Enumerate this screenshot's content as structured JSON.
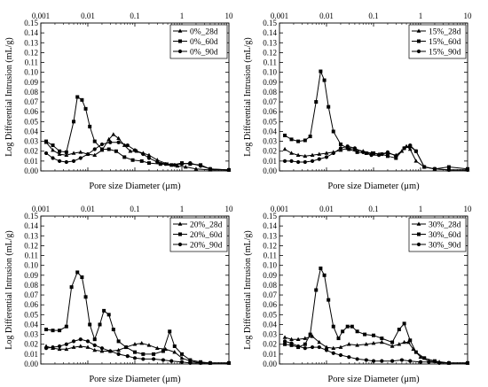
{
  "chart_data": [
    {
      "type": "line",
      "xlabel": "Pore size Diameter (μm)",
      "ylabel": "Log Differential Intrusion (mL/g)",
      "xscale": "log",
      "xlim": [
        0.001,
        10
      ],
      "ylim": [
        0,
        0.15
      ],
      "x_ticks": [
        "0.001",
        "0.01",
        "0.1",
        "1",
        "10"
      ],
      "y_ticks": [
        "0.00",
        "0.01",
        "0.02",
        "0.03",
        "0.04",
        "0.05",
        "0.06",
        "0.07",
        "0.08",
        "0.09",
        "0.10",
        "0.11",
        "0.12",
        "0.13",
        "0.14",
        "0.15"
      ],
      "legend_position": "top-right",
      "series": [
        {
          "name": "0%_28d",
          "marker": "triangle",
          "x": [
            0.0013,
            0.0018,
            0.0025,
            0.0035,
            0.005,
            0.007,
            0.01,
            0.014,
            0.02,
            0.028,
            0.035,
            0.045,
            0.06,
            0.08,
            0.11,
            0.15,
            0.2,
            0.3,
            0.5,
            0.8,
            1.2,
            2,
            4,
            10
          ],
          "y": [
            0.029,
            0.021,
            0.017,
            0.016,
            0.018,
            0.019,
            0.017,
            0.016,
            0.021,
            0.032,
            0.037,
            0.033,
            0.026,
            0.02,
            0.02,
            0.018,
            0.016,
            0.011,
            0.007,
            0.005,
            0.004,
            0.002,
            0.001,
            0.001
          ]
        },
        {
          "name": "0%_60d",
          "marker": "square",
          "x": [
            0.0013,
            0.0018,
            0.0025,
            0.0035,
            0.005,
            0.006,
            0.0075,
            0.009,
            0.011,
            0.014,
            0.02,
            0.028,
            0.04,
            0.06,
            0.09,
            0.14,
            0.2,
            0.35,
            0.6,
            1,
            1.5,
            2.5,
            4,
            10
          ],
          "y": [
            0.03,
            0.026,
            0.02,
            0.019,
            0.05,
            0.075,
            0.072,
            0.063,
            0.045,
            0.03,
            0.022,
            0.022,
            0.02,
            0.014,
            0.011,
            0.01,
            0.008,
            0.007,
            0.006,
            0.008,
            0.007,
            0.006,
            0.002,
            0.001
          ]
        },
        {
          "name": "0%_90d",
          "marker": "circle",
          "x": [
            0.0013,
            0.0018,
            0.0025,
            0.0035,
            0.005,
            0.007,
            0.01,
            0.014,
            0.02,
            0.03,
            0.045,
            0.07,
            0.1,
            0.15,
            0.2,
            0.3,
            0.45,
            0.7,
            1,
            1.5,
            2.5,
            4,
            10
          ],
          "y": [
            0.018,
            0.013,
            0.01,
            0.009,
            0.01,
            0.013,
            0.017,
            0.022,
            0.027,
            0.029,
            0.029,
            0.026,
            0.021,
            0.017,
            0.013,
            0.009,
            0.007,
            0.006,
            0.007,
            0.008,
            0.005,
            0.002,
            0.001
          ]
        }
      ]
    },
    {
      "type": "line",
      "xlabel": "Pore size Diameter (μm)",
      "ylabel": "Log Differential Intrusion (mL/g)",
      "xscale": "log",
      "xlim": [
        0.001,
        10
      ],
      "ylim": [
        0,
        0.15
      ],
      "x_ticks": [
        "0.001",
        "0.01",
        "0.1",
        "1",
        "10"
      ],
      "y_ticks": [
        "0.00",
        "0.01",
        "0.02",
        "0.03",
        "0.04",
        "0.05",
        "0.06",
        "0.07",
        "0.08",
        "0.09",
        "0.10",
        "0.11",
        "0.12",
        "0.13",
        "0.14",
        "0.15"
      ],
      "legend_position": "top-right",
      "series": [
        {
          "name": "15%_28d",
          "marker": "triangle",
          "x": [
            0.0013,
            0.0018,
            0.0025,
            0.0035,
            0.005,
            0.007,
            0.01,
            0.014,
            0.02,
            0.028,
            0.04,
            0.06,
            0.09,
            0.13,
            0.2,
            0.3,
            0.4,
            0.5,
            0.6,
            0.8,
            1.2,
            2,
            4,
            10
          ],
          "y": [
            0.022,
            0.018,
            0.016,
            0.015,
            0.016,
            0.017,
            0.018,
            0.019,
            0.021,
            0.023,
            0.022,
            0.02,
            0.018,
            0.017,
            0.018,
            0.016,
            0.02,
            0.025,
            0.022,
            0.01,
            0.004,
            0.002,
            0.001,
            0.001
          ]
        },
        {
          "name": "15%_60d",
          "marker": "square",
          "x": [
            0.0013,
            0.0018,
            0.0025,
            0.0035,
            0.0045,
            0.006,
            0.0075,
            0.009,
            0.011,
            0.014,
            0.02,
            0.03,
            0.045,
            0.07,
            0.1,
            0.15,
            0.2,
            0.3,
            0.45,
            0.6,
            0.8,
            1.2,
            2,
            4,
            10
          ],
          "y": [
            0.036,
            0.032,
            0.03,
            0.031,
            0.035,
            0.07,
            0.101,
            0.092,
            0.065,
            0.04,
            0.027,
            0.022,
            0.019,
            0.018,
            0.018,
            0.017,
            0.015,
            0.013,
            0.023,
            0.025,
            0.02,
            0.004,
            0.002,
            0.004,
            0.002
          ]
        },
        {
          "name": "15%_90d",
          "marker": "circle",
          "x": [
            0.0013,
            0.0018,
            0.0025,
            0.0035,
            0.005,
            0.007,
            0.01,
            0.014,
            0.02,
            0.028,
            0.04,
            0.06,
            0.09,
            0.13,
            0.2,
            0.3,
            0.45,
            0.6,
            0.8,
            1.2,
            2,
            4,
            10
          ],
          "y": [
            0.01,
            0.01,
            0.009,
            0.009,
            0.01,
            0.012,
            0.014,
            0.018,
            0.023,
            0.025,
            0.023,
            0.019,
            0.016,
            0.016,
            0.019,
            0.015,
            0.023,
            0.026,
            0.02,
            0.004,
            0.002,
            0.001,
            0.001
          ]
        }
      ]
    },
    {
      "type": "line",
      "xlabel": "Pore size Diameter (μm)",
      "ylabel": "Log Differential Intrusion (mL/g)",
      "xscale": "log",
      "xlim": [
        0.001,
        10
      ],
      "ylim": [
        0,
        0.15
      ],
      "x_ticks": [
        "0.001",
        "0.01",
        "0.1",
        "1",
        "10"
      ],
      "y_ticks": [
        "0.00",
        "0.01",
        "0.02",
        "0.03",
        "0.04",
        "0.05",
        "0.06",
        "0.07",
        "0.08",
        "0.09",
        "0.10",
        "0.11",
        "0.12",
        "0.13",
        "0.14",
        "0.15"
      ],
      "legend_position": "top-right",
      "series": [
        {
          "name": "20%_28d",
          "marker": "triangle",
          "x": [
            0.0013,
            0.0018,
            0.0025,
            0.0035,
            0.005,
            0.007,
            0.01,
            0.014,
            0.02,
            0.03,
            0.045,
            0.065,
            0.1,
            0.14,
            0.2,
            0.3,
            0.45,
            0.7,
            1,
            1.5,
            2.5,
            4,
            10
          ],
          "y": [
            0.018,
            0.016,
            0.015,
            0.015,
            0.017,
            0.018,
            0.017,
            0.014,
            0.013,
            0.013,
            0.014,
            0.017,
            0.02,
            0.021,
            0.019,
            0.016,
            0.015,
            0.012,
            0.006,
            0.003,
            0.001,
            0.001,
            0.001
          ]
        },
        {
          "name": "20%_60d",
          "marker": "square",
          "x": [
            0.0013,
            0.0018,
            0.0025,
            0.0035,
            0.0045,
            0.006,
            0.0075,
            0.009,
            0.011,
            0.014,
            0.018,
            0.022,
            0.028,
            0.035,
            0.045,
            0.065,
            0.1,
            0.15,
            0.25,
            0.4,
            0.55,
            0.7,
            1,
            1.5,
            2.5,
            4,
            10
          ],
          "y": [
            0.035,
            0.034,
            0.034,
            0.038,
            0.078,
            0.093,
            0.088,
            0.068,
            0.04,
            0.025,
            0.04,
            0.054,
            0.05,
            0.035,
            0.023,
            0.017,
            0.012,
            0.01,
            0.01,
            0.013,
            0.033,
            0.018,
            0.01,
            0.004,
            0.002,
            0.001,
            0.001
          ]
        },
        {
          "name": "20%_90d",
          "marker": "circle",
          "x": [
            0.0013,
            0.0018,
            0.0025,
            0.0035,
            0.005,
            0.007,
            0.01,
            0.014,
            0.02,
            0.03,
            0.045,
            0.07,
            0.1,
            0.15,
            0.25,
            0.4,
            0.6,
            1,
            1.5,
            2.5,
            4,
            10
          ],
          "y": [
            0.016,
            0.017,
            0.018,
            0.02,
            0.023,
            0.025,
            0.023,
            0.019,
            0.016,
            0.013,
            0.01,
            0.008,
            0.006,
            0.005,
            0.005,
            0.004,
            0.003,
            0.002,
            0.001,
            0.001,
            0.001,
            0.001
          ]
        }
      ]
    },
    {
      "type": "line",
      "xlabel": "Pore size Diameter (μm)",
      "ylabel": "Log Differential Intrusion (mL/g)",
      "xscale": "log",
      "xlim": [
        0.001,
        10
      ],
      "ylim": [
        0,
        0.15
      ],
      "x_ticks": [
        "0.001",
        "0.01",
        "0.1",
        "1",
        "10"
      ],
      "y_ticks": [
        "0.00",
        "0.01",
        "0.02",
        "0.03",
        "0.04",
        "0.05",
        "0.06",
        "0.07",
        "0.08",
        "0.09",
        "0.10",
        "0.11",
        "0.12",
        "0.13",
        "0.14",
        "0.15"
      ],
      "legend_position": "top-right",
      "series": [
        {
          "name": "30%_28d",
          "marker": "triangle",
          "x": [
            0.0013,
            0.0018,
            0.0025,
            0.0035,
            0.005,
            0.007,
            0.01,
            0.014,
            0.02,
            0.03,
            0.045,
            0.07,
            0.1,
            0.15,
            0.25,
            0.35,
            0.45,
            0.55,
            0.7,
            1,
            1.5,
            2.5,
            4,
            10
          ],
          "y": [
            0.027,
            0.025,
            0.025,
            0.026,
            0.028,
            0.022,
            0.017,
            0.016,
            0.017,
            0.02,
            0.019,
            0.02,
            0.021,
            0.022,
            0.018,
            0.02,
            0.022,
            0.022,
            0.015,
            0.007,
            0.003,
            0.002,
            0.001,
            0.001
          ]
        },
        {
          "name": "30%_60d",
          "marker": "square",
          "x": [
            0.0013,
            0.0018,
            0.0025,
            0.0035,
            0.0045,
            0.006,
            0.0075,
            0.009,
            0.011,
            0.014,
            0.018,
            0.022,
            0.028,
            0.035,
            0.045,
            0.065,
            0.1,
            0.15,
            0.25,
            0.35,
            0.45,
            0.6,
            0.8,
            1.2,
            2,
            4,
            10
          ],
          "y": [
            0.02,
            0.019,
            0.017,
            0.02,
            0.03,
            0.075,
            0.097,
            0.09,
            0.065,
            0.038,
            0.026,
            0.033,
            0.038,
            0.038,
            0.033,
            0.03,
            0.029,
            0.026,
            0.022,
            0.035,
            0.041,
            0.024,
            0.012,
            0.006,
            0.003,
            0.001,
            0.001
          ]
        },
        {
          "name": "30%_90d",
          "marker": "circle",
          "x": [
            0.0013,
            0.0018,
            0.0025,
            0.0035,
            0.005,
            0.007,
            0.01,
            0.014,
            0.02,
            0.03,
            0.045,
            0.07,
            0.1,
            0.15,
            0.25,
            0.4,
            0.6,
            1,
            1.5,
            2.5,
            4,
            10
          ],
          "y": [
            0.023,
            0.021,
            0.018,
            0.016,
            0.017,
            0.017,
            0.014,
            0.011,
            0.009,
            0.007,
            0.005,
            0.004,
            0.003,
            0.003,
            0.003,
            0.004,
            0.003,
            0.002,
            0.002,
            0.001,
            0.001,
            0.001
          ]
        }
      ]
    }
  ]
}
